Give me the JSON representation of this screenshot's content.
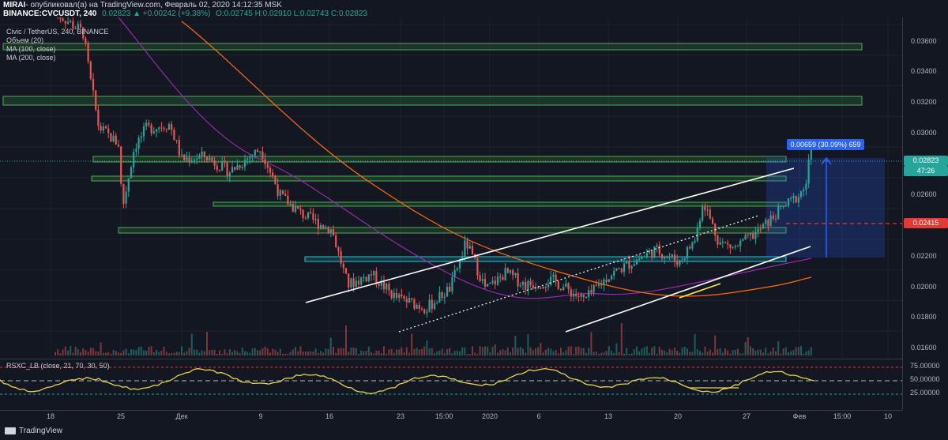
{
  "header": {
    "publisher": "MIRAI",
    "published_text": "- опубликовал(а) на TradingView.com, Февраль 02, 2020 14:12:35 MSK",
    "symbol": "BINANCE:CVCUSDT, 240",
    "change": "0.02823 ▲ +0.00242 (+9.38%)",
    "ohlc": "O:0.02745 H:0.02910 L:0.02743 C:0.02823"
  },
  "legend": {
    "pair": "Civic / TetherUS, 240, BINANCE",
    "volume": "Объем (20)",
    "ma100": "MA (100, close)",
    "ma200": "MA (200, close)"
  },
  "price_axis": {
    "labels": [
      "0.03600",
      "0.03400",
      "0.03200",
      "0.03000",
      "0.02600",
      "0.02200",
      "0.02000",
      "0.01800",
      "0.01600"
    ],
    "current_price": "0.02823",
    "countdown": "47:26",
    "red_line_price": "0.02415"
  },
  "measure": {
    "label": "0.00659 (30.09%) 659"
  },
  "rsi": {
    "title": "RSXC_LB (close, 21, 70, 30, 50)",
    "labels": [
      "75.00000",
      "50.00000",
      "25.00000"
    ]
  },
  "time_axis": {
    "labels": [
      "18",
      "25",
      "Дек",
      "9",
      "16",
      "23",
      "15:00",
      "2020",
      "6",
      "13",
      "20",
      "27",
      "Фев",
      "15:00",
      "10"
    ]
  },
  "footer": {
    "brand": "TradingView"
  },
  "colors": {
    "background": "#131722",
    "up_candle": "#26a69a",
    "down_candle": "#ef5350",
    "zone": "#4caf50",
    "ma100": "#9c27b0",
    "ma200": "#ff6d00",
    "rsi_line": "#e6d34a",
    "measure": "#2962ff",
    "red_line": "#e53935"
  }
}
